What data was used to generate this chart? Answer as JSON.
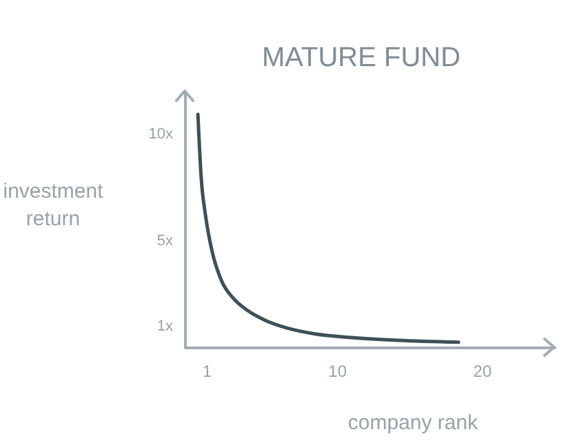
{
  "chart_data": {
    "type": "line",
    "title": "MATURE FUND",
    "xlabel": "company rank",
    "ylabel": "investment return",
    "x": [
      0.41,
      0.63,
      0.95,
      1.42,
      2.05,
      2.84,
      3.79,
      5.05,
      6.6,
      8.5,
      11.0,
      14.2,
      18.4
    ],
    "series": [
      {
        "color": "#3e5058",
        "values": [
          10.9,
          8.0,
          6.1,
          4.4,
          3.1,
          2.3,
          1.74,
          1.26,
          0.89,
          0.62,
          0.45,
          0.32,
          0.23
        ]
      }
    ],
    "xlim": [
      -0.5,
      25
    ],
    "ylim": [
      0,
      12
    ],
    "xticks": [
      1,
      10,
      20
    ],
    "yticks": [
      {
        "value": 1,
        "label": "1x"
      },
      {
        "value": 5,
        "label": "5x"
      },
      {
        "value": 10,
        "label": "10x"
      }
    ]
  }
}
